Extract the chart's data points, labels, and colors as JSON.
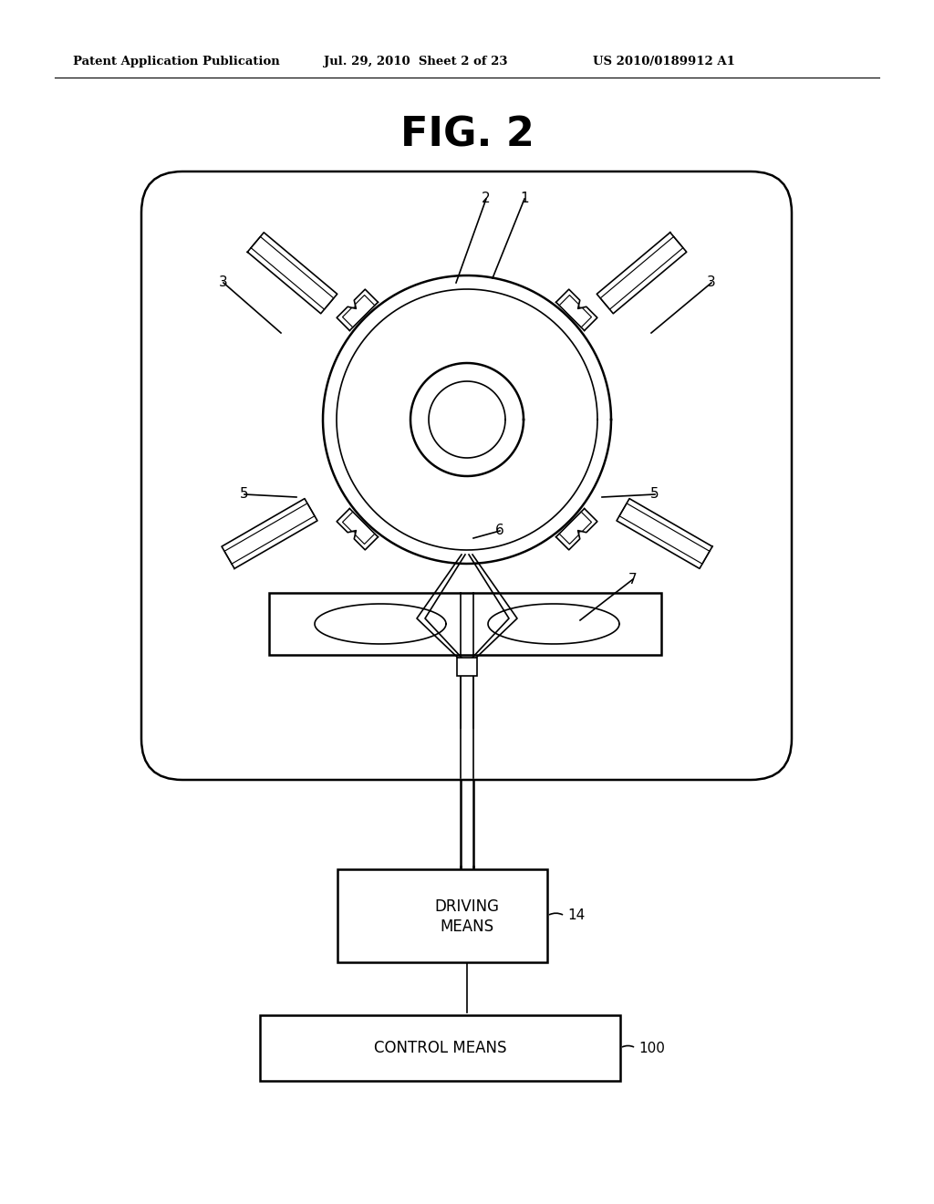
{
  "bg_color": "#ffffff",
  "line_color": "#000000",
  "title": "FIG. 2",
  "header_left": "Patent Application Publication",
  "header_mid": "Jul. 29, 2010  Sheet 2 of 23",
  "header_right": "US 2010/0189912 A1"
}
